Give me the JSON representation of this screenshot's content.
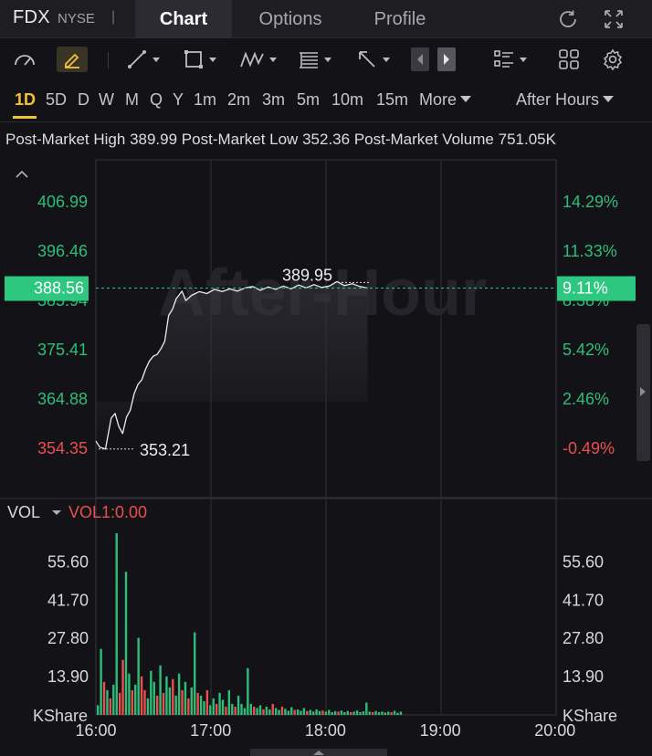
{
  "header": {
    "ticker": "FDX",
    "exchange": "NYSE",
    "separator": "|",
    "tabs": [
      {
        "label": "Chart",
        "active": true
      },
      {
        "label": "Options",
        "active": false
      },
      {
        "label": "Profile",
        "active": false
      }
    ],
    "icons": [
      "refresh-icon",
      "fullscreen-icon"
    ]
  },
  "toolbar": {
    "icons": [
      "gauge-icon",
      "pen-icon",
      "trendline-icon",
      "rectangle-icon",
      "pattern-icon",
      "fibonacci-icon",
      "arrow-icon",
      "prev-icon",
      "next-icon",
      "layout-list-icon",
      "grid-icon",
      "settings-icon"
    ]
  },
  "timeframes": {
    "items": [
      "1D",
      "5D",
      "D",
      "W",
      "M",
      "Q",
      "Y",
      "1m",
      "2m",
      "3m",
      "5m",
      "10m",
      "15m"
    ],
    "active": "1D",
    "more_label": "More",
    "session_label": "After Hours"
  },
  "stats": {
    "high_label": "Post-Market High",
    "high_value": "389.99",
    "low_label": "Post-Market Low",
    "low_value": "352.36",
    "volume_label": "Post-Market Volume",
    "volume_value": "751.05K"
  },
  "watermark": "After-Hour",
  "chart_data": {
    "type": "line",
    "price_axis_left": [
      "406.99",
      "396.46",
      "385.94",
      "375.41",
      "364.88",
      "354.35"
    ],
    "price_axis_right": [
      "14.29%",
      "11.33%",
      "8.38%",
      "5.42%",
      "2.46%",
      "-0.49%"
    ],
    "ylim": [
      354.35,
      406.99
    ],
    "current_price": "388.56",
    "current_change": "9.11%",
    "high_marker": "389.95",
    "low_marker": "353.21",
    "x_ticks": [
      "16:00",
      "17:00",
      "18:00",
      "19:00",
      "20:00"
    ],
    "price_series": [
      {
        "t": 0,
        "p": 355.9
      },
      {
        "t": 2,
        "p": 354.6
      },
      {
        "t": 5,
        "p": 354.2
      },
      {
        "t": 8,
        "p": 360.8
      },
      {
        "t": 10,
        "p": 361.8
      },
      {
        "t": 12,
        "p": 359.0
      },
      {
        "t": 14,
        "p": 357.5
      },
      {
        "t": 16,
        "p": 361.0
      },
      {
        "t": 18,
        "p": 362.5
      },
      {
        "t": 20,
        "p": 366.0
      },
      {
        "t": 22,
        "p": 368.0
      },
      {
        "t": 24,
        "p": 369.0
      },
      {
        "t": 26,
        "p": 371.3
      },
      {
        "t": 28,
        "p": 373.0
      },
      {
        "t": 30,
        "p": 374.0
      },
      {
        "t": 32,
        "p": 374.4
      },
      {
        "t": 34,
        "p": 375.6
      },
      {
        "t": 36,
        "p": 377.2
      },
      {
        "t": 38,
        "p": 382.7
      },
      {
        "t": 40,
        "p": 384.0
      },
      {
        "t": 42,
        "p": 386.3
      },
      {
        "t": 45,
        "p": 387.9
      },
      {
        "t": 47,
        "p": 385.9
      },
      {
        "t": 50,
        "p": 387.0
      },
      {
        "t": 54,
        "p": 387.8
      },
      {
        "t": 58,
        "p": 387.4
      },
      {
        "t": 62,
        "p": 388.3
      },
      {
        "t": 66,
        "p": 387.8
      },
      {
        "t": 70,
        "p": 388.4
      },
      {
        "t": 74,
        "p": 387.9
      },
      {
        "t": 78,
        "p": 388.6
      },
      {
        "t": 82,
        "p": 388.9
      },
      {
        "t": 86,
        "p": 388.1
      },
      {
        "t": 90,
        "p": 388.8
      },
      {
        "t": 94,
        "p": 388.3
      },
      {
        "t": 98,
        "p": 389.0
      },
      {
        "t": 102,
        "p": 388.4
      },
      {
        "t": 106,
        "p": 389.2
      },
      {
        "t": 110,
        "p": 388.6
      },
      {
        "t": 114,
        "p": 389.3
      },
      {
        "t": 118,
        "p": 388.7
      },
      {
        "t": 122,
        "p": 389.0
      },
      {
        "t": 126,
        "p": 389.95
      },
      {
        "t": 130,
        "p": 389.1
      },
      {
        "t": 134,
        "p": 389.5
      },
      {
        "t": 138,
        "p": 388.9
      },
      {
        "t": 142,
        "p": 388.56
      }
    ],
    "volume": {
      "label": "VOL",
      "indicator": "VOL1:0.00",
      "axis_ticks": [
        "55.60",
        "41.70",
        "27.80",
        "13.90"
      ],
      "axis_unit": "KShare",
      "ylim": [
        0,
        68
      ],
      "bars": [
        {
          "v": 3.5,
          "u": true
        },
        {
          "v": 24.0,
          "u": true
        },
        {
          "v": 12.0,
          "u": false
        },
        {
          "v": 9.0,
          "u": true
        },
        {
          "v": 6.0,
          "u": false
        },
        {
          "v": 11.0,
          "u": true
        },
        {
          "v": 66.0,
          "u": true
        },
        {
          "v": 8.0,
          "u": false
        },
        {
          "v": 20.0,
          "u": false
        },
        {
          "v": 52.0,
          "u": true
        },
        {
          "v": 15.0,
          "u": true
        },
        {
          "v": 9.0,
          "u": false
        },
        {
          "v": 11.0,
          "u": true
        },
        {
          "v": 28.0,
          "u": true
        },
        {
          "v": 14.0,
          "u": false
        },
        {
          "v": 9.0,
          "u": false
        },
        {
          "v": 6.0,
          "u": true
        },
        {
          "v": 16.0,
          "u": true
        },
        {
          "v": 12.0,
          "u": true
        },
        {
          "v": 7.0,
          "u": false
        },
        {
          "v": 18.0,
          "u": true
        },
        {
          "v": 8.0,
          "u": false
        },
        {
          "v": 14.0,
          "u": true
        },
        {
          "v": 10.0,
          "u": true
        },
        {
          "v": 13.0,
          "u": false
        },
        {
          "v": 7.0,
          "u": true
        },
        {
          "v": 15.0,
          "u": true
        },
        {
          "v": 9.0,
          "u": false
        },
        {
          "v": 12.0,
          "u": true
        },
        {
          "v": 6.0,
          "u": false
        },
        {
          "v": 10.0,
          "u": true
        },
        {
          "v": 30.0,
          "u": true
        },
        {
          "v": 8.0,
          "u": false
        },
        {
          "v": 7.0,
          "u": true
        },
        {
          "v": 5.0,
          "u": true
        },
        {
          "v": 9.0,
          "u": false
        },
        {
          "v": 3.5,
          "u": true
        },
        {
          "v": 6.0,
          "u": true
        },
        {
          "v": 4.0,
          "u": false
        },
        {
          "v": 8.0,
          "u": true
        },
        {
          "v": 5.5,
          "u": true
        },
        {
          "v": 3.0,
          "u": false
        },
        {
          "v": 9.0,
          "u": true
        },
        {
          "v": 4.0,
          "u": true
        },
        {
          "v": 3.0,
          "u": false
        },
        {
          "v": 7.0,
          "u": true
        },
        {
          "v": 4.0,
          "u": true
        },
        {
          "v": 2.5,
          "u": true
        },
        {
          "v": 17.0,
          "u": true
        },
        {
          "v": 4.0,
          "u": true
        },
        {
          "v": 3.0,
          "u": false
        },
        {
          "v": 2.5,
          "u": true
        },
        {
          "v": 3.5,
          "u": true
        },
        {
          "v": 2.0,
          "u": false
        },
        {
          "v": 3.0,
          "u": true
        },
        {
          "v": 2.0,
          "u": true
        },
        {
          "v": 4.0,
          "u": false
        },
        {
          "v": 2.5,
          "u": true
        },
        {
          "v": 1.8,
          "u": true
        },
        {
          "v": 3.0,
          "u": false
        },
        {
          "v": 2.2,
          "u": true
        },
        {
          "v": 1.5,
          "u": true
        },
        {
          "v": 2.8,
          "u": true
        },
        {
          "v": 1.8,
          "u": false
        },
        {
          "v": 2.0,
          "u": true
        },
        {
          "v": 1.5,
          "u": true
        },
        {
          "v": 2.5,
          "u": true
        },
        {
          "v": 1.4,
          "u": false
        },
        {
          "v": 1.8,
          "u": true
        },
        {
          "v": 1.2,
          "u": true
        },
        {
          "v": 2.0,
          "u": true
        },
        {
          "v": 1.4,
          "u": true
        },
        {
          "v": 1.6,
          "u": false
        },
        {
          "v": 1.2,
          "u": true
        },
        {
          "v": 1.8,
          "u": true
        },
        {
          "v": 1.0,
          "u": true
        },
        {
          "v": 1.4,
          "u": true
        },
        {
          "v": 1.2,
          "u": false
        },
        {
          "v": 1.6,
          "u": true
        },
        {
          "v": 1.0,
          "u": true
        },
        {
          "v": 1.4,
          "u": true
        },
        {
          "v": 1.0,
          "u": false
        },
        {
          "v": 1.2,
          "u": true
        },
        {
          "v": 1.6,
          "u": true
        },
        {
          "v": 1.0,
          "u": true
        },
        {
          "v": 1.3,
          "u": true
        },
        {
          "v": 4.5,
          "u": true
        },
        {
          "v": 1.2,
          "u": true
        },
        {
          "v": 1.0,
          "u": false
        },
        {
          "v": 1.4,
          "u": true
        },
        {
          "v": 1.0,
          "u": true
        },
        {
          "v": 1.2,
          "u": true
        },
        {
          "v": 0.9,
          "u": true
        },
        {
          "v": 1.2,
          "u": true
        },
        {
          "v": 1.0,
          "u": false
        },
        {
          "v": 1.5,
          "u": true
        },
        {
          "v": 0.8,
          "u": true
        },
        {
          "v": 1.2,
          "u": true
        }
      ]
    }
  },
  "colors": {
    "up": "#2dbd7a",
    "down": "#ec4d4d",
    "accent": "#f1c232",
    "price_label_bg": "#2dc77f",
    "line": "#ececf0"
  }
}
